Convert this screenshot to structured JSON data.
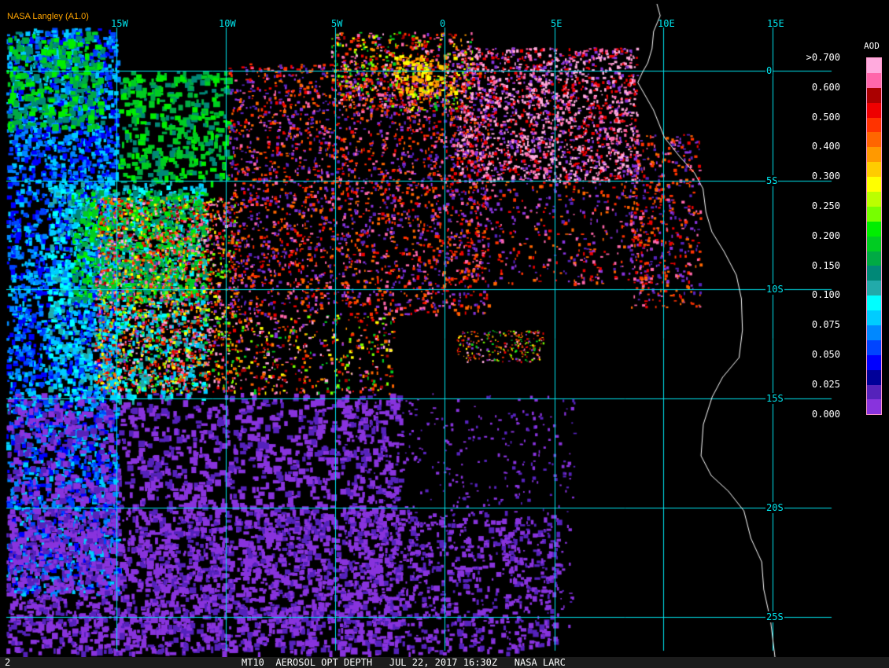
{
  "header": {
    "title": "NASA Langley (A1.0)"
  },
  "map": {
    "longitude_labels": [
      "15W",
      "10W",
      "5W",
      "0",
      "5E",
      "10E",
      "15E"
    ],
    "latitude_labels": [
      "0",
      "5S",
      "10S",
      "15S",
      "20S",
      "25S"
    ],
    "gridline_color": "#00e5ee",
    "coastline_color": "#ffffff"
  },
  "legend": {
    "title": "AOD",
    "labels": [
      ">0.700",
      "0.600",
      "0.500",
      "0.400",
      "0.300",
      "0.250",
      "0.200",
      "0.150",
      "0.100",
      "0.075",
      "0.050",
      "0.025",
      "0.000"
    ],
    "colors": [
      "#ffaadd",
      "#ff66aa",
      "#aa0000",
      "#ee0000",
      "#ff3300",
      "#ff6600",
      "#ff9900",
      "#ffcc00",
      "#ffff00",
      "#bbff00",
      "#77ff00",
      "#00ee00",
      "#00cc22",
      "#00aa44",
      "#008877",
      "#22aaaa",
      "#00ffff",
      "#00ccff",
      "#0088ff",
      "#0044ff",
      "#0000ff",
      "#000099",
      "#5522bb",
      "#8833dd"
    ]
  },
  "status": {
    "frame_number": "2",
    "text": "MT10  AEROSOL OPT DEPTH   JUL 22, 2017 16:30Z   NASA LARC"
  }
}
